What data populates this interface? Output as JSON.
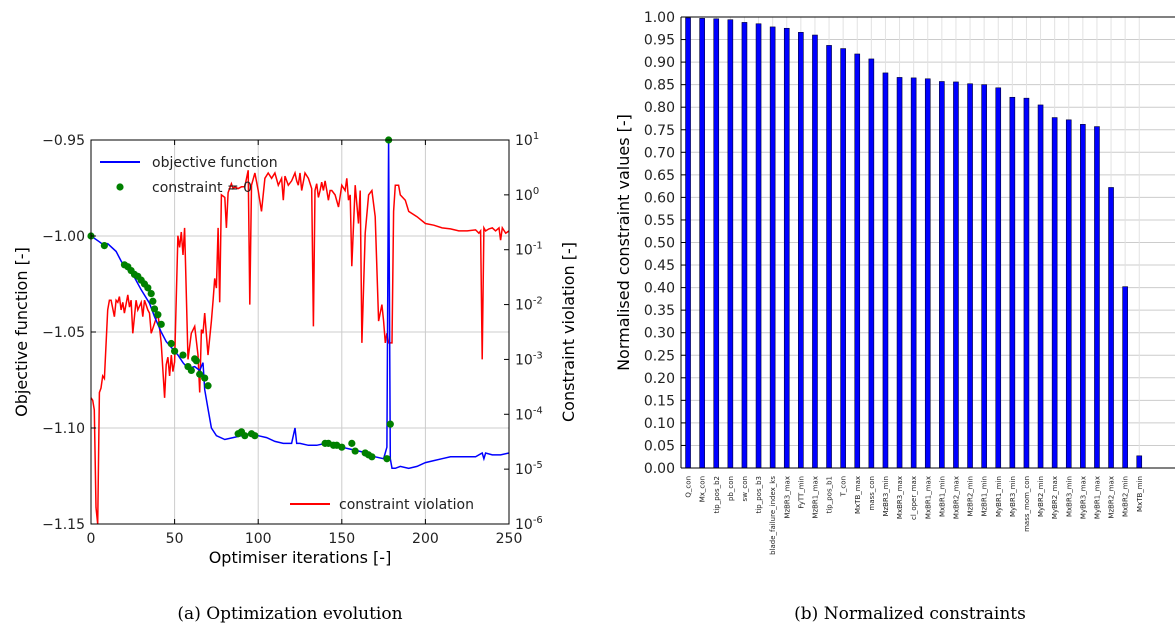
{
  "captions": {
    "left": "(a) Optimization evolution",
    "right": "(b) Normalized constraints"
  },
  "chart_data": [
    {
      "type": "line",
      "xlabel": "Optimiser iterations [-]",
      "ylabel_left": "Objective function [-]",
      "ylabel_right": "Constraint violation [-]",
      "xlim": [
        0,
        250
      ],
      "ylim_left": [
        -1.15,
        -0.95
      ],
      "ylim_right": [
        1e-06,
        10
      ],
      "yscale_right": "log",
      "grid": true,
      "xticks": [
        "0",
        "50",
        "100",
        "150",
        "200",
        "250"
      ],
      "yticks_left": [
        "−0.95",
        "−1.00",
        "−1.05",
        "−1.10",
        "−1.15"
      ],
      "yticks_right": [
        {
          "base": "10",
          "exp": "1"
        },
        {
          "base": "10",
          "exp": "0"
        },
        {
          "base": "10",
          "exp": "-1"
        },
        {
          "base": "10",
          "exp": "-2"
        },
        {
          "base": "10",
          "exp": "-3"
        },
        {
          "base": "10",
          "exp": "-4"
        },
        {
          "base": "10",
          "exp": "-5"
        },
        {
          "base": "10",
          "exp": "-6"
        }
      ],
      "legend_upper": {
        "placement": "top-left",
        "entries": [
          "objective function",
          "constraint = 0"
        ]
      },
      "legend_lower": {
        "placement": "bottom-right",
        "entries": [
          "constraint violation"
        ]
      },
      "colors": {
        "objective": "#0000ff",
        "constraint_zero": "#008000",
        "violation": "#ff0000"
      },
      "series": [
        {
          "name": "objective function",
          "axis": "left",
          "x": [
            0,
            5,
            8,
            10,
            15,
            18,
            20,
            25,
            30,
            35,
            38,
            42,
            45,
            48,
            52,
            55,
            58,
            62,
            65,
            67,
            68,
            70,
            72,
            75,
            80,
            85,
            90,
            95,
            100,
            105,
            110,
            115,
            120,
            122,
            123,
            125,
            130,
            135,
            140,
            145,
            150,
            155,
            160,
            165,
            170,
            175,
            177,
            178,
            179,
            180,
            182,
            185,
            190,
            195,
            200,
            205,
            210,
            215,
            220,
            225,
            230,
            234,
            235,
            236,
            240,
            245,
            250
          ],
          "y": [
            -1.0,
            -1.003,
            -1.005,
            -1.004,
            -1.008,
            -1.013,
            -1.016,
            -1.02,
            -1.028,
            -1.035,
            -1.042,
            -1.05,
            -1.055,
            -1.058,
            -1.062,
            -1.066,
            -1.069,
            -1.068,
            -1.07,
            -1.066,
            -1.08,
            -1.09,
            -1.1,
            -1.104,
            -1.106,
            -1.105,
            -1.104,
            -1.103,
            -1.104,
            -1.105,
            -1.107,
            -1.108,
            -1.108,
            -1.1,
            -1.108,
            -1.108,
            -1.109,
            -1.109,
            -1.108,
            -1.109,
            -1.11,
            -1.111,
            -1.112,
            -1.113,
            -1.115,
            -1.116,
            -1.11,
            -0.95,
            -1.116,
            -1.121,
            -1.121,
            -1.12,
            -1.121,
            -1.12,
            -1.118,
            -1.117,
            -1.116,
            -1.115,
            -1.115,
            -1.115,
            -1.115,
            -1.113,
            -1.116,
            -1.113,
            -1.114,
            -1.114,
            -1.113
          ]
        },
        {
          "name": "constraint = 0",
          "axis": "left",
          "x": [
            0,
            8,
            20,
            22,
            24,
            26,
            28,
            30,
            32,
            34,
            36,
            37,
            38,
            40,
            42,
            48,
            50,
            55,
            58,
            60,
            62,
            63,
            65,
            68,
            70,
            88,
            90,
            92,
            96,
            98,
            140,
            142,
            145,
            147,
            150,
            156,
            158,
            164,
            166,
            168,
            177,
            178,
            179
          ],
          "y": [
            -1.0,
            -1.005,
            -1.015,
            -1.016,
            -1.018,
            -1.02,
            -1.021,
            -1.023,
            -1.025,
            -1.027,
            -1.03,
            -1.034,
            -1.038,
            -1.041,
            -1.046,
            -1.056,
            -1.06,
            -1.062,
            -1.068,
            -1.07,
            -1.064,
            -1.065,
            -1.072,
            -1.074,
            -1.078,
            -1.103,
            -1.102,
            -1.104,
            -1.103,
            -1.104,
            -1.108,
            -1.108,
            -1.109,
            -1.109,
            -1.11,
            -1.108,
            -1.112,
            -1.113,
            -1.114,
            -1.115,
            -1.116,
            -0.95,
            -1.098
          ]
        },
        {
          "name": "constraint violation",
          "axis": "right",
          "x": [
            0,
            1,
            2,
            3,
            4,
            5,
            6,
            7,
            8,
            10,
            11,
            12,
            14,
            15,
            16,
            17,
            18,
            19,
            20,
            22,
            23,
            24,
            25,
            27,
            28,
            30,
            31,
            32,
            34,
            35,
            36,
            40,
            42,
            44,
            45,
            46,
            47,
            48,
            49,
            50,
            52,
            53,
            54,
            55,
            56,
            58,
            60,
            62,
            64,
            65,
            66,
            67,
            68,
            70,
            72,
            73,
            74,
            75,
            76,
            77,
            78,
            80,
            81,
            82,
            84,
            85,
            86,
            88,
            90,
            92,
            94,
            95,
            96,
            98,
            100,
            102,
            104,
            106,
            108,
            110,
            112,
            114,
            115,
            116,
            118,
            120,
            122,
            123,
            124,
            125,
            126,
            128,
            130,
            132,
            133,
            134,
            135,
            136,
            137,
            138,
            139,
            140,
            141,
            142,
            143,
            144,
            146,
            148,
            150,
            152,
            153,
            154,
            155,
            156,
            158,
            160,
            161,
            162,
            164,
            166,
            168,
            170,
            172,
            174,
            175,
            176,
            177,
            178,
            180,
            181,
            182,
            184,
            185,
            188,
            190,
            195,
            200,
            205,
            210,
            215,
            220,
            225,
            230,
            232,
            233,
            234,
            235,
            236,
            238,
            240,
            242,
            244,
            245,
            246,
            248,
            250
          ],
          "y": [
            0.0002,
            0.00018,
            0.00012,
            2e-06,
            1e-06,
            0.00025,
            0.0003,
            0.0005,
            0.00045,
            0.008,
            0.012,
            0.012,
            0.006,
            0.012,
            0.011,
            0.014,
            0.008,
            0.011,
            0.007,
            0.015,
            0.009,
            0.012,
            0.003,
            0.012,
            0.008,
            0.011,
            0.006,
            0.012,
            0.008,
            0.007,
            0.003,
            0.007,
            0.002,
            0.0002,
            0.0008,
            0.0011,
            0.0005,
            0.0012,
            0.0006,
            0.0009,
            0.18,
            0.11,
            0.21,
            0.08,
            0.25,
            0.001,
            0.003,
            0.004,
            0.0012,
            0.00025,
            0.0035,
            0.003,
            0.007,
            0.0012,
            0.005,
            0.012,
            0.03,
            0.02,
            0.25,
            0.011,
            1.0,
            0.9,
            0.25,
            1.1,
            1.6,
            1.3,
            1.4,
            1.3,
            1.4,
            1.4,
            2.8,
            0.01,
            1.5,
            2.5,
            1.2,
            0.5,
            2.0,
            2.5,
            2.0,
            2.5,
            1.5,
            2.0,
            0.8,
            2.2,
            1.5,
            1.8,
            2.5,
            1.8,
            1.5,
            2.5,
            1.2,
            2.5,
            2.0,
            1.3,
            0.004,
            1.2,
            1.6,
            0.9,
            1.2,
            1.7,
            1.2,
            1.8,
            1.2,
            0.8,
            1.2,
            1.2,
            1.0,
            0.6,
            1.5,
            1.2,
            2.0,
            0.8,
            1.0,
            0.05,
            1.5,
            0.3,
            1.2,
            0.002,
            0.2,
            1.0,
            1.2,
            0.4,
            0.005,
            0.01,
            0.005,
            0.002,
            0.003,
            0.002,
            0.002,
            0.5,
            1.5,
            1.5,
            1.0,
            0.8,
            0.5,
            0.4,
            0.3,
            0.28,
            0.25,
            0.24,
            0.22,
            0.22,
            0.23,
            0.2,
            0.22,
            0.001,
            0.25,
            0.22,
            0.24,
            0.25,
            0.22,
            0.25,
            0.15,
            0.25,
            0.2,
            0.22
          ]
        }
      ]
    },
    {
      "type": "bar",
      "ylabel": "Normalised constraint values [-]",
      "ylim": [
        0,
        1
      ],
      "grid": true,
      "bar_color": "#0000ff",
      "yticks": [
        "0.00",
        "0.05",
        "0.10",
        "0.15",
        "0.20",
        "0.25",
        "0.30",
        "0.35",
        "0.40",
        "0.45",
        "0.50",
        "0.55",
        "0.60",
        "0.65",
        "0.70",
        "0.75",
        "0.80",
        "0.85",
        "0.90",
        "0.95",
        "1.00"
      ],
      "categories": [
        "Q_con",
        "Mx_con",
        "tip_pos_b2",
        "pb_con",
        "sw_con",
        "tip_pos_b3",
        "blade_failure_index_ks",
        "MzBR3_max",
        "FyTT_min",
        "MzBR1_max",
        "tip_pos_b1",
        "T_con",
        "MxTB_max",
        "mass_con",
        "MzBR3_min",
        "MxBR3_max",
        "cl_oper_max",
        "MxBR1_max",
        "MxBR1_min",
        "MxBR2_max",
        "MzBR2_min",
        "MzBR1_min",
        "MyBR1_min",
        "MyBR3_min",
        "mass_mom_con",
        "MyBR2_min",
        "MyBR2_max",
        "MxBR3_min",
        "MyBR3_max",
        "MyBR1_max",
        "MzBR2_max",
        "MxBR2_min",
        "MxTB_min"
      ],
      "values": [
        0.998,
        0.997,
        0.996,
        0.994,
        0.988,
        0.985,
        0.978,
        0.975,
        0.966,
        0.96,
        0.937,
        0.93,
        0.918,
        0.907,
        0.876,
        0.866,
        0.865,
        0.863,
        0.857,
        0.856,
        0.852,
        0.85,
        0.843,
        0.822,
        0.82,
        0.805,
        0.777,
        0.772,
        0.762,
        0.757,
        0.622,
        0.402,
        0.027
      ]
    }
  ]
}
